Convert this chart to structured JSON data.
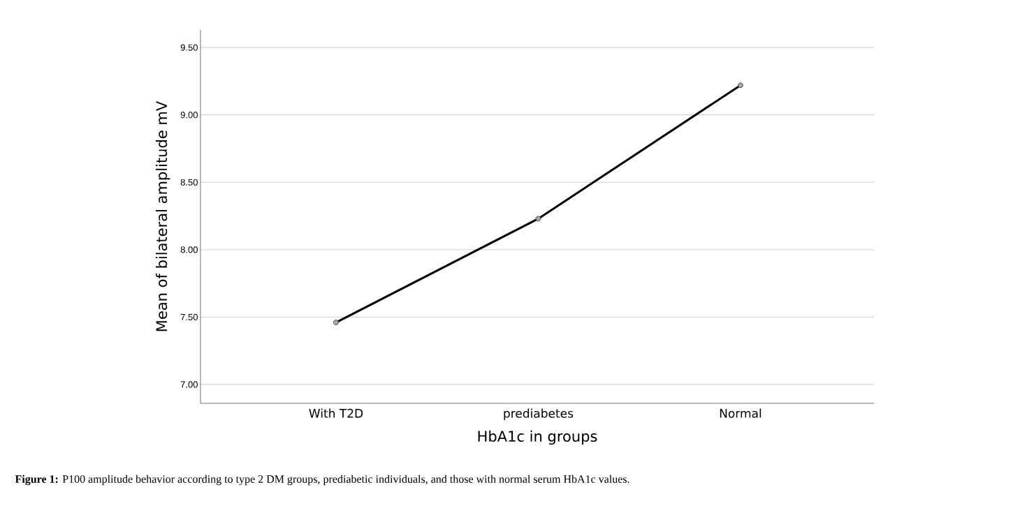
{
  "chart_data": {
    "type": "line",
    "categories": [
      "With T2D",
      "prediabetes",
      "Normal"
    ],
    "series": [
      {
        "color": "#000000",
        "values": [
          7.46,
          8.23,
          9.22
        ]
      }
    ],
    "xlabel": "HbA1c in groups",
    "ylabel": "Mean of bilateral amplitude mV",
    "ylim": [
      6.86,
      9.63
    ],
    "yticks": [
      {
        "value": 7.0,
        "label": "7.00"
      },
      {
        "value": 7.5,
        "label": "7.50"
      },
      {
        "value": 8.0,
        "label": "8.00"
      },
      {
        "value": 8.5,
        "label": "8.50"
      },
      {
        "value": 9.0,
        "label": "9.00"
      },
      {
        "value": 9.5,
        "label": "9.50"
      }
    ],
    "grid": "y",
    "marker": "circle",
    "line_style": "solid",
    "annotations": [
      "**Figure 1:** P100 amplitude behavior according to type 2 DM groups, prediabetic individuals, and those with normal serum HbA1c values."
    ]
  }
}
